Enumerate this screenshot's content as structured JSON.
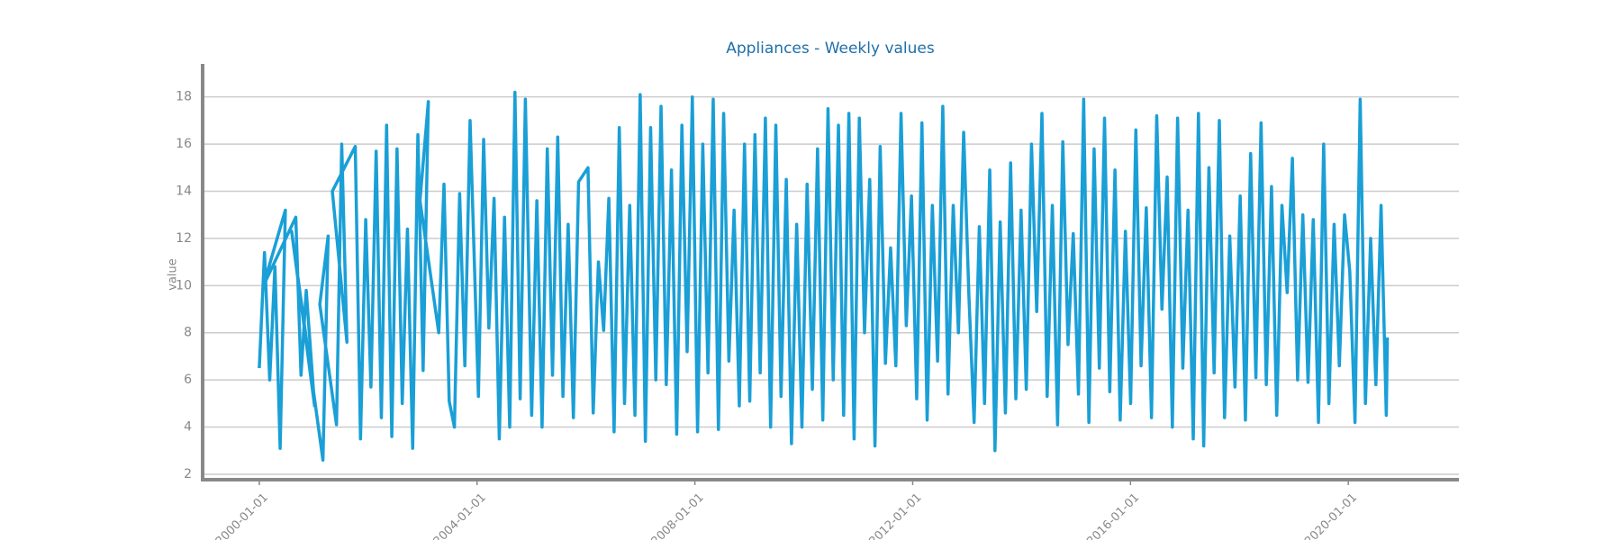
{
  "chart_data": {
    "type": "line",
    "title": "Appliances - Weekly values",
    "y_label": "value",
    "color": "#1a9fd6",
    "grid": true,
    "xlim": [
      "1998-12-17",
      "2022-01-12"
    ],
    "xticks": [
      "2000-01-01",
      "2004-01-01",
      "2008-01-01",
      "2012-01-01",
      "2016-01-01",
      "2020-01-01"
    ],
    "ylim": [
      1.77,
      19.4
    ],
    "yticks": [
      2,
      4,
      6,
      8,
      10,
      12,
      14,
      16,
      18
    ],
    "x": [
      "2000-01-01",
      "2000-02-05",
      "2000-03-11",
      "2000-04-15",
      "2000-05-20",
      "2000-06-24",
      "2000-01-29",
      "2000-09-02",
      "2000-10-07",
      "2000-11-11",
      "2001-01-06",
      "2000-08-05",
      "2001-03-03",
      "2001-04-07",
      "2001-02-10",
      "2001-06-02",
      "2001-07-07",
      "2001-08-11",
      "2001-05-05",
      "2001-10-06",
      "2001-11-10",
      "2001-12-15",
      "2002-01-19",
      "2002-02-23",
      "2002-03-30",
      "2002-05-04",
      "2002-06-08",
      "2002-07-13",
      "2002-08-17",
      "2002-09-21",
      "2002-10-26",
      "2002-11-30",
      "2003-01-04",
      "2003-02-08",
      "2002-12-14",
      "2003-04-19",
      "2003-05-24",
      "2003-06-28",
      "2003-08-02",
      "2003-09-06",
      "2003-10-11",
      "2003-11-15",
      "2004-01-10",
      "2004-02-14",
      "2004-03-20",
      "2004-04-24",
      "2004-05-29",
      "2004-07-03",
      "2004-08-07",
      "2004-09-11",
      "2004-10-16",
      "2004-11-20",
      "2005-01-01",
      "2005-02-05",
      "2005-03-12",
      "2005-04-16",
      "2005-05-21",
      "2005-06-25",
      "2005-07-30",
      "2005-09-03",
      "2005-10-08",
      "2005-11-12",
      "2006-01-14",
      "2006-02-18",
      "2006-03-25",
      "2006-04-29",
      "2006-06-03",
      "2006-07-08",
      "2006-08-12",
      "2006-09-16",
      "2006-10-21",
      "2006-11-25",
      "2006-12-30",
      "2007-02-03",
      "2007-03-10",
      "2007-04-14",
      "2007-05-19",
      "2007-06-23",
      "2007-07-28",
      "2007-09-01",
      "2007-10-06",
      "2007-11-10",
      "2007-12-15",
      "2008-01-19",
      "2008-02-23",
      "2008-03-29",
      "2008-05-03",
      "2008-06-07",
      "2008-07-12",
      "2008-08-16",
      "2008-09-20",
      "2008-10-25",
      "2008-11-29",
      "2009-01-03",
      "2009-02-07",
      "2009-03-14",
      "2009-04-18",
      "2009-05-23",
      "2009-06-27",
      "2009-08-01",
      "2009-09-05",
      "2009-10-10",
      "2009-11-14",
      "2009-12-19",
      "2010-01-23",
      "2010-02-27",
      "2010-04-03",
      "2010-05-08",
      "2010-06-12",
      "2010-07-17",
      "2010-08-21",
      "2010-09-25",
      "2010-10-30",
      "2010-12-04",
      "2011-01-08",
      "2011-02-12",
      "2011-03-19",
      "2011-04-23",
      "2011-05-28",
      "2011-07-02",
      "2011-08-06",
      "2011-09-10",
      "2011-10-15",
      "2011-11-19",
      "2011-12-24",
      "2012-01-28",
      "2012-03-03",
      "2012-04-07",
      "2012-05-12",
      "2012-06-16",
      "2012-07-21",
      "2012-08-25",
      "2012-09-29",
      "2012-11-03",
      "2012-12-08",
      "2013-01-12",
      "2013-02-16",
      "2013-03-23",
      "2013-04-27",
      "2013-06-01",
      "2013-07-06",
      "2013-08-10",
      "2013-09-14",
      "2013-10-19",
      "2013-11-23",
      "2013-12-28",
      "2014-02-01",
      "2014-03-08",
      "2014-04-12",
      "2014-05-17",
      "2014-06-21",
      "2014-07-26",
      "2014-08-30",
      "2014-10-04",
      "2014-11-08",
      "2014-12-13",
      "2015-01-17",
      "2015-02-21",
      "2015-03-28",
      "2015-05-02",
      "2015-06-06",
      "2015-07-11",
      "2015-08-15",
      "2015-09-19",
      "2015-10-24",
      "2015-11-28",
      "2016-01-02",
      "2016-02-06",
      "2016-03-12",
      "2016-04-16",
      "2016-05-21",
      "2016-06-25",
      "2016-07-30",
      "2016-09-03",
      "2016-10-08",
      "2016-11-12",
      "2016-12-17",
      "2017-01-21",
      "2017-02-25",
      "2017-04-01",
      "2017-05-06",
      "2017-06-10",
      "2017-07-15",
      "2017-08-19",
      "2017-09-23",
      "2017-10-28",
      "2017-12-02",
      "2018-01-06",
      "2018-02-10",
      "2018-03-17",
      "2018-04-21",
      "2018-05-26",
      "2018-06-30",
      "2018-08-04",
      "2018-09-08",
      "2018-10-13",
      "2018-11-17",
      "2018-12-22",
      "2019-01-26",
      "2019-03-02",
      "2019-04-06",
      "2019-05-11",
      "2019-06-15",
      "2019-07-20",
      "2019-08-24",
      "2019-09-28",
      "2019-11-02",
      "2019-12-07",
      "2020-01-11",
      "2020-02-15",
      "2020-03-21",
      "2020-04-25",
      "2020-05-30",
      "2020-07-04",
      "2020-08-08",
      "2020-09-12",
      "2020-09-19"
    ],
    "values": [
      6.5,
      11.4,
      6.0,
      10.8,
      3.1,
      13.2,
      10.0,
      12.9,
      6.2,
      9.8,
      4.9,
      12.3,
      2.6,
      12.1,
      9.2,
      4.1,
      16.0,
      7.6,
      14.0,
      15.9,
      3.5,
      12.8,
      5.7,
      15.7,
      4.4,
      16.8,
      3.6,
      15.8,
      5.0,
      12.4,
      3.1,
      16.4,
      6.4,
      17.8,
      13.6,
      8.0,
      14.3,
      5.1,
      4.0,
      13.9,
      6.6,
      17.0,
      5.3,
      16.2,
      8.2,
      13.7,
      3.5,
      12.9,
      4.0,
      18.2,
      5.2,
      17.9,
      4.5,
      13.6,
      4.0,
      15.8,
      6.2,
      16.3,
      5.3,
      12.6,
      4.4,
      14.4,
      15.0,
      4.6,
      11.0,
      8.1,
      13.7,
      3.8,
      16.7,
      5.0,
      13.4,
      4.5,
      18.1,
      3.4,
      16.7,
      6.0,
      17.6,
      5.8,
      14.9,
      3.7,
      16.8,
      7.2,
      18.0,
      3.8,
      16.0,
      6.3,
      17.9,
      3.9,
      17.3,
      6.8,
      13.2,
      4.9,
      16.0,
      5.1,
      16.4,
      6.3,
      17.1,
      4.0,
      16.8,
      5.3,
      14.5,
      3.3,
      12.6,
      4.0,
      14.3,
      5.6,
      15.8,
      4.3,
      17.5,
      6.0,
      16.8,
      4.5,
      17.3,
      3.5,
      17.1,
      8.0,
      14.5,
      3.2,
      15.9,
      6.7,
      11.6,
      6.6,
      17.3,
      8.3,
      13.8,
      5.2,
      16.9,
      4.3,
      13.4,
      6.8,
      17.6,
      5.4,
      13.4,
      8.0,
      16.5,
      9.6,
      4.2,
      12.5,
      5.0,
      14.9,
      3.0,
      12.7,
      4.6,
      15.2,
      5.2,
      13.2,
      5.6,
      16.0,
      8.9,
      17.3,
      5.3,
      13.4,
      4.1,
      16.1,
      7.5,
      12.2,
      5.4,
      17.9,
      4.2,
      15.8,
      6.5,
      17.1,
      5.5,
      14.9,
      4.3,
      12.3,
      5.0,
      16.6,
      6.6,
      13.3,
      4.4,
      17.2,
      9.0,
      14.6,
      4.0,
      17.1,
      6.5,
      13.2,
      3.5,
      17.3,
      3.2,
      15.0,
      6.3,
      17.0,
      4.4,
      12.1,
      5.7,
      13.8,
      4.3,
      15.6,
      6.1,
      16.9,
      5.8,
      14.2,
      4.5,
      13.4,
      9.7,
      15.4,
      6.0,
      13.0,
      5.9,
      12.8,
      4.2,
      16.0,
      5.0,
      12.6,
      6.6,
      13.0,
      10.6,
      4.2,
      17.9,
      5.0,
      12.0,
      5.8,
      13.4,
      4.5,
      7.8
    ]
  }
}
